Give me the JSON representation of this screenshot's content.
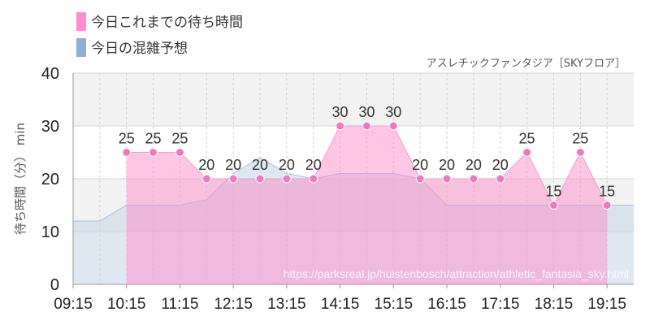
{
  "legend": [
    {
      "label": "今日これまでの待ち時間",
      "color": "#ff8ccc"
    },
    {
      "label": "今日の混雑予想",
      "color": "#8fb0d0"
    }
  ],
  "subtitle": "アスレチックファンタジア［SKYフロア］",
  "watermark": "https://parksreal.jp/huistenbosch/attraction/athletic_fantasia_sky.html",
  "chart_data": {
    "type": "area",
    "ylabel": "待ち時間（分） min",
    "ylim": [
      0,
      40
    ],
    "yticks": [
      0,
      10,
      20,
      30,
      40
    ],
    "xlim": [
      "09:15",
      "19:45"
    ],
    "xticks": [
      "09:15",
      "10:15",
      "11:15",
      "12:15",
      "13:15",
      "14:15",
      "15:15",
      "16:15",
      "17:15",
      "18:15",
      "19:15"
    ],
    "grid": true,
    "legend_position": "top-left",
    "series": [
      {
        "name": "今日これまでの待ち時間",
        "color": "#ff8ccc",
        "x": [
          "10:15",
          "10:45",
          "11:15",
          "11:45",
          "12:15",
          "12:45",
          "13:15",
          "13:45",
          "14:15",
          "14:45",
          "15:15",
          "15:45",
          "16:15",
          "16:45",
          "17:15",
          "17:45",
          "18:15",
          "18:45",
          "19:15"
        ],
        "values": [
          25,
          25,
          25,
          20,
          20,
          20,
          20,
          20,
          30,
          30,
          30,
          20,
          20,
          20,
          20,
          25,
          15,
          25,
          15
        ]
      },
      {
        "name": "今日の混雑予想",
        "color": "#8fb0d0",
        "x": [
          "09:15",
          "09:45",
          "10:15",
          "10:45",
          "11:15",
          "11:45",
          "12:15",
          "12:45",
          "13:15",
          "13:45",
          "14:15",
          "14:45",
          "15:15",
          "15:45",
          "16:15",
          "16:45",
          "17:15",
          "17:45",
          "18:15",
          "18:45",
          "19:15",
          "19:45"
        ],
        "values": [
          12,
          12,
          15,
          15,
          15,
          16,
          21,
          24,
          21,
          20,
          21,
          21,
          21,
          20,
          15,
          15,
          15,
          15,
          15,
          15,
          15,
          15
        ]
      }
    ]
  }
}
